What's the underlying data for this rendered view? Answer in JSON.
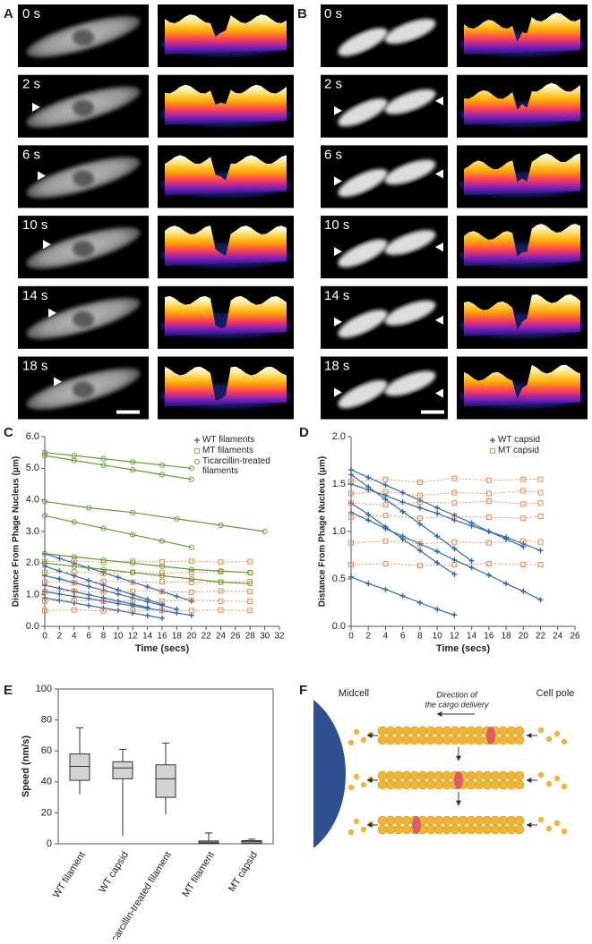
{
  "panel_labels": [
    "A",
    "B",
    "C",
    "D",
    "E",
    "F"
  ],
  "time_labels": [
    "0 s",
    "2 s",
    "6 s",
    "10 s",
    "14 s",
    "18 s"
  ],
  "chart_data": [
    {
      "type": "scatter",
      "xlabel": "Time (secs)",
      "ylabel": "Distance From Phage Nucleus (μm)",
      "xlim": [
        0,
        32
      ],
      "xticks": [
        0,
        2,
        4,
        6,
        8,
        10,
        12,
        14,
        16,
        18,
        20,
        22,
        24,
        26,
        28,
        30,
        32
      ],
      "ylim": [
        0,
        6
      ],
      "yticks": [
        {
          "value": 0,
          "label": "0.0"
        },
        {
          "value": 1,
          "label": "1.0"
        },
        {
          "value": 2,
          "label": "2.0"
        },
        {
          "value": 3,
          "label": "3.0"
        },
        {
          "value": 4,
          "label": "4.0"
        },
        {
          "value": 5,
          "label": "5.0"
        },
        {
          "value": 6,
          "label": "6.0"
        }
      ],
      "legend": "top-right",
      "series": [
        {
          "name": "WT filaments",
          "color": "#2e6ab5",
          "marker": "plus",
          "dashed": false,
          "tracks": [
            {
              "x": [
                0,
                2,
                4,
                6,
                8,
                10,
                12,
                14,
                16,
                18,
                20
              ],
              "values": [
                2.3,
                2.15,
                2.0,
                1.85,
                1.7,
                1.55,
                1.4,
                1.25,
                1.1,
                0.95,
                0.8
              ]
            },
            {
              "x": [
                0,
                2,
                4,
                6,
                8,
                10,
                12,
                14,
                16
              ],
              "values": [
                1.9,
                1.75,
                1.6,
                1.45,
                1.3,
                1.15,
                1.0,
                0.85,
                0.7
              ]
            },
            {
              "x": [
                0,
                2,
                4,
                6,
                8,
                10,
                12,
                14,
                16,
                18
              ],
              "values": [
                1.6,
                1.5,
                1.38,
                1.26,
                1.14,
                1.02,
                0.9,
                0.78,
                0.66,
                0.54
              ]
            },
            {
              "x": [
                0,
                2,
                4,
                6,
                8,
                10,
                12,
                14
              ],
              "values": [
                1.3,
                1.2,
                1.1,
                1.0,
                0.9,
                0.8,
                0.7,
                0.6
              ]
            },
            {
              "x": [
                0,
                2,
                4,
                6,
                8,
                10,
                12,
                14,
                16,
                18,
                20
              ],
              "values": [
                1.1,
                1.02,
                0.95,
                0.88,
                0.8,
                0.72,
                0.65,
                0.57,
                0.5,
                0.42,
                0.35
              ]
            },
            {
              "x": [
                0,
                2,
                4,
                6,
                8,
                10,
                12,
                14,
                16
              ],
              "values": [
                0.9,
                0.82,
                0.74,
                0.66,
                0.58,
                0.5,
                0.42,
                0.34,
                0.26
              ]
            }
          ]
        },
        {
          "name": "MT filaments",
          "color": "#e8803a",
          "marker": "square",
          "dashed": true,
          "tracks": [
            {
              "x": [
                0,
                4,
                8,
                12,
                16,
                20,
                24,
                28
              ],
              "values": [
                2.05,
                2.08,
                2.02,
                2.06,
                2.04,
                2.07,
                2.03,
                2.05
              ]
            },
            {
              "x": [
                0,
                4,
                8,
                12,
                16,
                20,
                24,
                28
              ],
              "values": [
                1.7,
                1.72,
                1.68,
                1.71,
                1.69,
                1.7,
                1.73,
                1.7
              ]
            },
            {
              "x": [
                0,
                4,
                8,
                12,
                16,
                20,
                24,
                28
              ],
              "values": [
                1.4,
                1.38,
                1.42,
                1.4,
                1.41,
                1.39,
                1.4,
                1.42
              ]
            },
            {
              "x": [
                0,
                4,
                8,
                12,
                16,
                20,
                24,
                28
              ],
              "values": [
                1.1,
                1.12,
                1.09,
                1.11,
                1.1,
                1.08,
                1.12,
                1.1
              ]
            },
            {
              "x": [
                0,
                4,
                8,
                12,
                16,
                20,
                24,
                28
              ],
              "values": [
                0.8,
                0.82,
                0.79,
                0.81,
                0.8,
                0.83,
                0.8,
                0.79
              ]
            },
            {
              "x": [
                0,
                4,
                8,
                12,
                16,
                20,
                24,
                28
              ],
              "values": [
                0.5,
                0.52,
                0.49,
                0.51,
                0.5,
                0.5,
                0.52,
                0.5
              ]
            }
          ]
        },
        {
          "name": "Ticarcillin-treated filaments",
          "color": "#5aa02c",
          "marker": "circle",
          "dashed": false,
          "tracks": [
            {
              "x": [
                0,
                4,
                8,
                12,
                16,
                20
              ],
              "values": [
                5.5,
                5.4,
                5.3,
                5.2,
                5.1,
                5.0
              ]
            },
            {
              "x": [
                0,
                4,
                8,
                12,
                16,
                20
              ],
              "values": [
                5.4,
                5.25,
                5.1,
                4.95,
                4.8,
                4.65
              ]
            },
            {
              "x": [
                0,
                6,
                12,
                18,
                24,
                30
              ],
              "values": [
                3.95,
                3.75,
                3.6,
                3.4,
                3.2,
                3.0
              ]
            },
            {
              "x": [
                0,
                4,
                8,
                12,
                16,
                20
              ],
              "values": [
                3.5,
                3.3,
                3.1,
                2.9,
                2.7,
                2.5
              ]
            },
            {
              "x": [
                0,
                4,
                8,
                12,
                16,
                20,
                24,
                28
              ],
              "values": [
                2.3,
                2.2,
                2.1,
                2.0,
                1.9,
                1.8,
                1.75,
                1.7
              ]
            },
            {
              "x": [
                0,
                4,
                8,
                12,
                16,
                20,
                24,
                28
              ],
              "values": [
                2.0,
                1.9,
                1.8,
                1.7,
                1.6,
                1.5,
                1.4,
                1.35
              ]
            }
          ]
        }
      ]
    },
    {
      "type": "scatter",
      "xlabel": "Time (secs)",
      "ylabel": "Distance From Phage Nucleus (μm)",
      "xlim": [
        0,
        26
      ],
      "xticks": [
        0,
        2,
        4,
        6,
        8,
        10,
        12,
        14,
        16,
        18,
        20,
        22,
        24,
        26
      ],
      "ylim": [
        0,
        2
      ],
      "yticks": [
        {
          "value": 0,
          "label": "0.0"
        },
        {
          "value": 0.5,
          "label": "0.5"
        },
        {
          "value": 1,
          "label": "1.0"
        },
        {
          "value": 1.5,
          "label": "1.5"
        },
        {
          "value": 2,
          "label": "2.0"
        }
      ],
      "legend": "top-right",
      "series": [
        {
          "name": "WT capsid",
          "color": "#2e6ab5",
          "marker": "plus",
          "dashed": false,
          "tracks": [
            {
              "x": [
                0,
                2,
                4,
                6,
                8,
                10,
                12,
                14,
                16,
                18,
                20
              ],
              "values": [
                1.65,
                1.57,
                1.49,
                1.41,
                1.33,
                1.25,
                1.17,
                1.09,
                1.0,
                0.92,
                0.84
              ]
            },
            {
              "x": [
                0,
                2,
                4,
                6,
                8,
                10,
                12,
                14
              ],
              "values": [
                1.6,
                1.47,
                1.34,
                1.21,
                1.08,
                0.95,
                0.82,
                0.69
              ]
            },
            {
              "x": [
                0,
                2,
                4,
                6,
                8,
                10,
                12,
                14,
                16,
                18,
                20,
                22
              ],
              "values": [
                1.5,
                1.44,
                1.38,
                1.31,
                1.25,
                1.19,
                1.12,
                1.06,
                1.0,
                0.94,
                0.87,
                0.8
              ]
            },
            {
              "x": [
                0,
                2,
                4,
                6,
                8,
                10,
                12
              ],
              "values": [
                1.3,
                1.18,
                1.05,
                0.92,
                0.8,
                0.67,
                0.55
              ]
            },
            {
              "x": [
                0,
                2,
                4,
                6,
                8,
                10,
                12,
                14,
                16,
                18,
                20,
                22
              ],
              "values": [
                1.2,
                1.12,
                1.03,
                0.95,
                0.87,
                0.79,
                0.7,
                0.62,
                0.54,
                0.45,
                0.37,
                0.28
              ]
            },
            {
              "x": [
                0,
                2,
                4,
                6,
                8,
                10,
                12
              ],
              "values": [
                0.52,
                0.45,
                0.39,
                0.32,
                0.25,
                0.18,
                0.12
              ]
            }
          ]
        },
        {
          "name": "MT capsid",
          "color": "#e8803a",
          "marker": "square",
          "dashed": true,
          "tracks": [
            {
              "x": [
                0,
                4,
                8,
                12,
                16,
                20,
                22
              ],
              "values": [
                1.53,
                1.55,
                1.52,
                1.56,
                1.54,
                1.55,
                1.55
              ]
            },
            {
              "x": [
                0,
                4,
                8,
                12,
                16,
                20,
                22
              ],
              "values": [
                1.4,
                1.42,
                1.38,
                1.41,
                1.4,
                1.43,
                1.41
              ]
            },
            {
              "x": [
                0,
                4,
                8,
                12,
                16,
                20,
                22
              ],
              "values": [
                1.3,
                1.28,
                1.31,
                1.3,
                1.32,
                1.29,
                1.3
              ]
            },
            {
              "x": [
                0,
                4,
                8,
                12,
                16,
                20,
                22
              ],
              "values": [
                1.15,
                1.17,
                1.14,
                1.16,
                1.15,
                1.14,
                1.16
              ]
            },
            {
              "x": [
                0,
                4,
                8,
                12,
                16,
                20,
                22
              ],
              "values": [
                0.88,
                0.9,
                0.87,
                0.89,
                0.88,
                0.9,
                0.89
              ]
            },
            {
              "x": [
                0,
                4,
                8,
                12,
                16,
                20,
                22
              ],
              "values": [
                0.65,
                0.66,
                0.64,
                0.65,
                0.66,
                0.65,
                0.65
              ]
            }
          ]
        }
      ]
    },
    {
      "type": "box",
      "ylabel": "Speed (nm/s)",
      "categories": [
        "WT filament",
        "WT capsid",
        "Ticarcillin-treated filament",
        "MT filament",
        "MT capsid"
      ],
      "min": [
        32,
        5,
        19,
        0,
        0
      ],
      "q1": [
        41,
        42,
        30,
        0.3,
        0.5
      ],
      "median": [
        50,
        49,
        42,
        1,
        1.5
      ],
      "q3": [
        58,
        53,
        51,
        1.8,
        2
      ],
      "max": [
        75,
        61,
        65,
        7,
        3
      ],
      "color": "#d3d3d3",
      "ylim": [
        0,
        100
      ],
      "yticks": [
        0,
        20,
        40,
        60,
        80,
        100
      ]
    }
  ],
  "diagram": {
    "midcell": "Midcell",
    "cell_pole": "Cell pole",
    "direction": [
      "Direction of",
      "the cargo delivery"
    ]
  }
}
